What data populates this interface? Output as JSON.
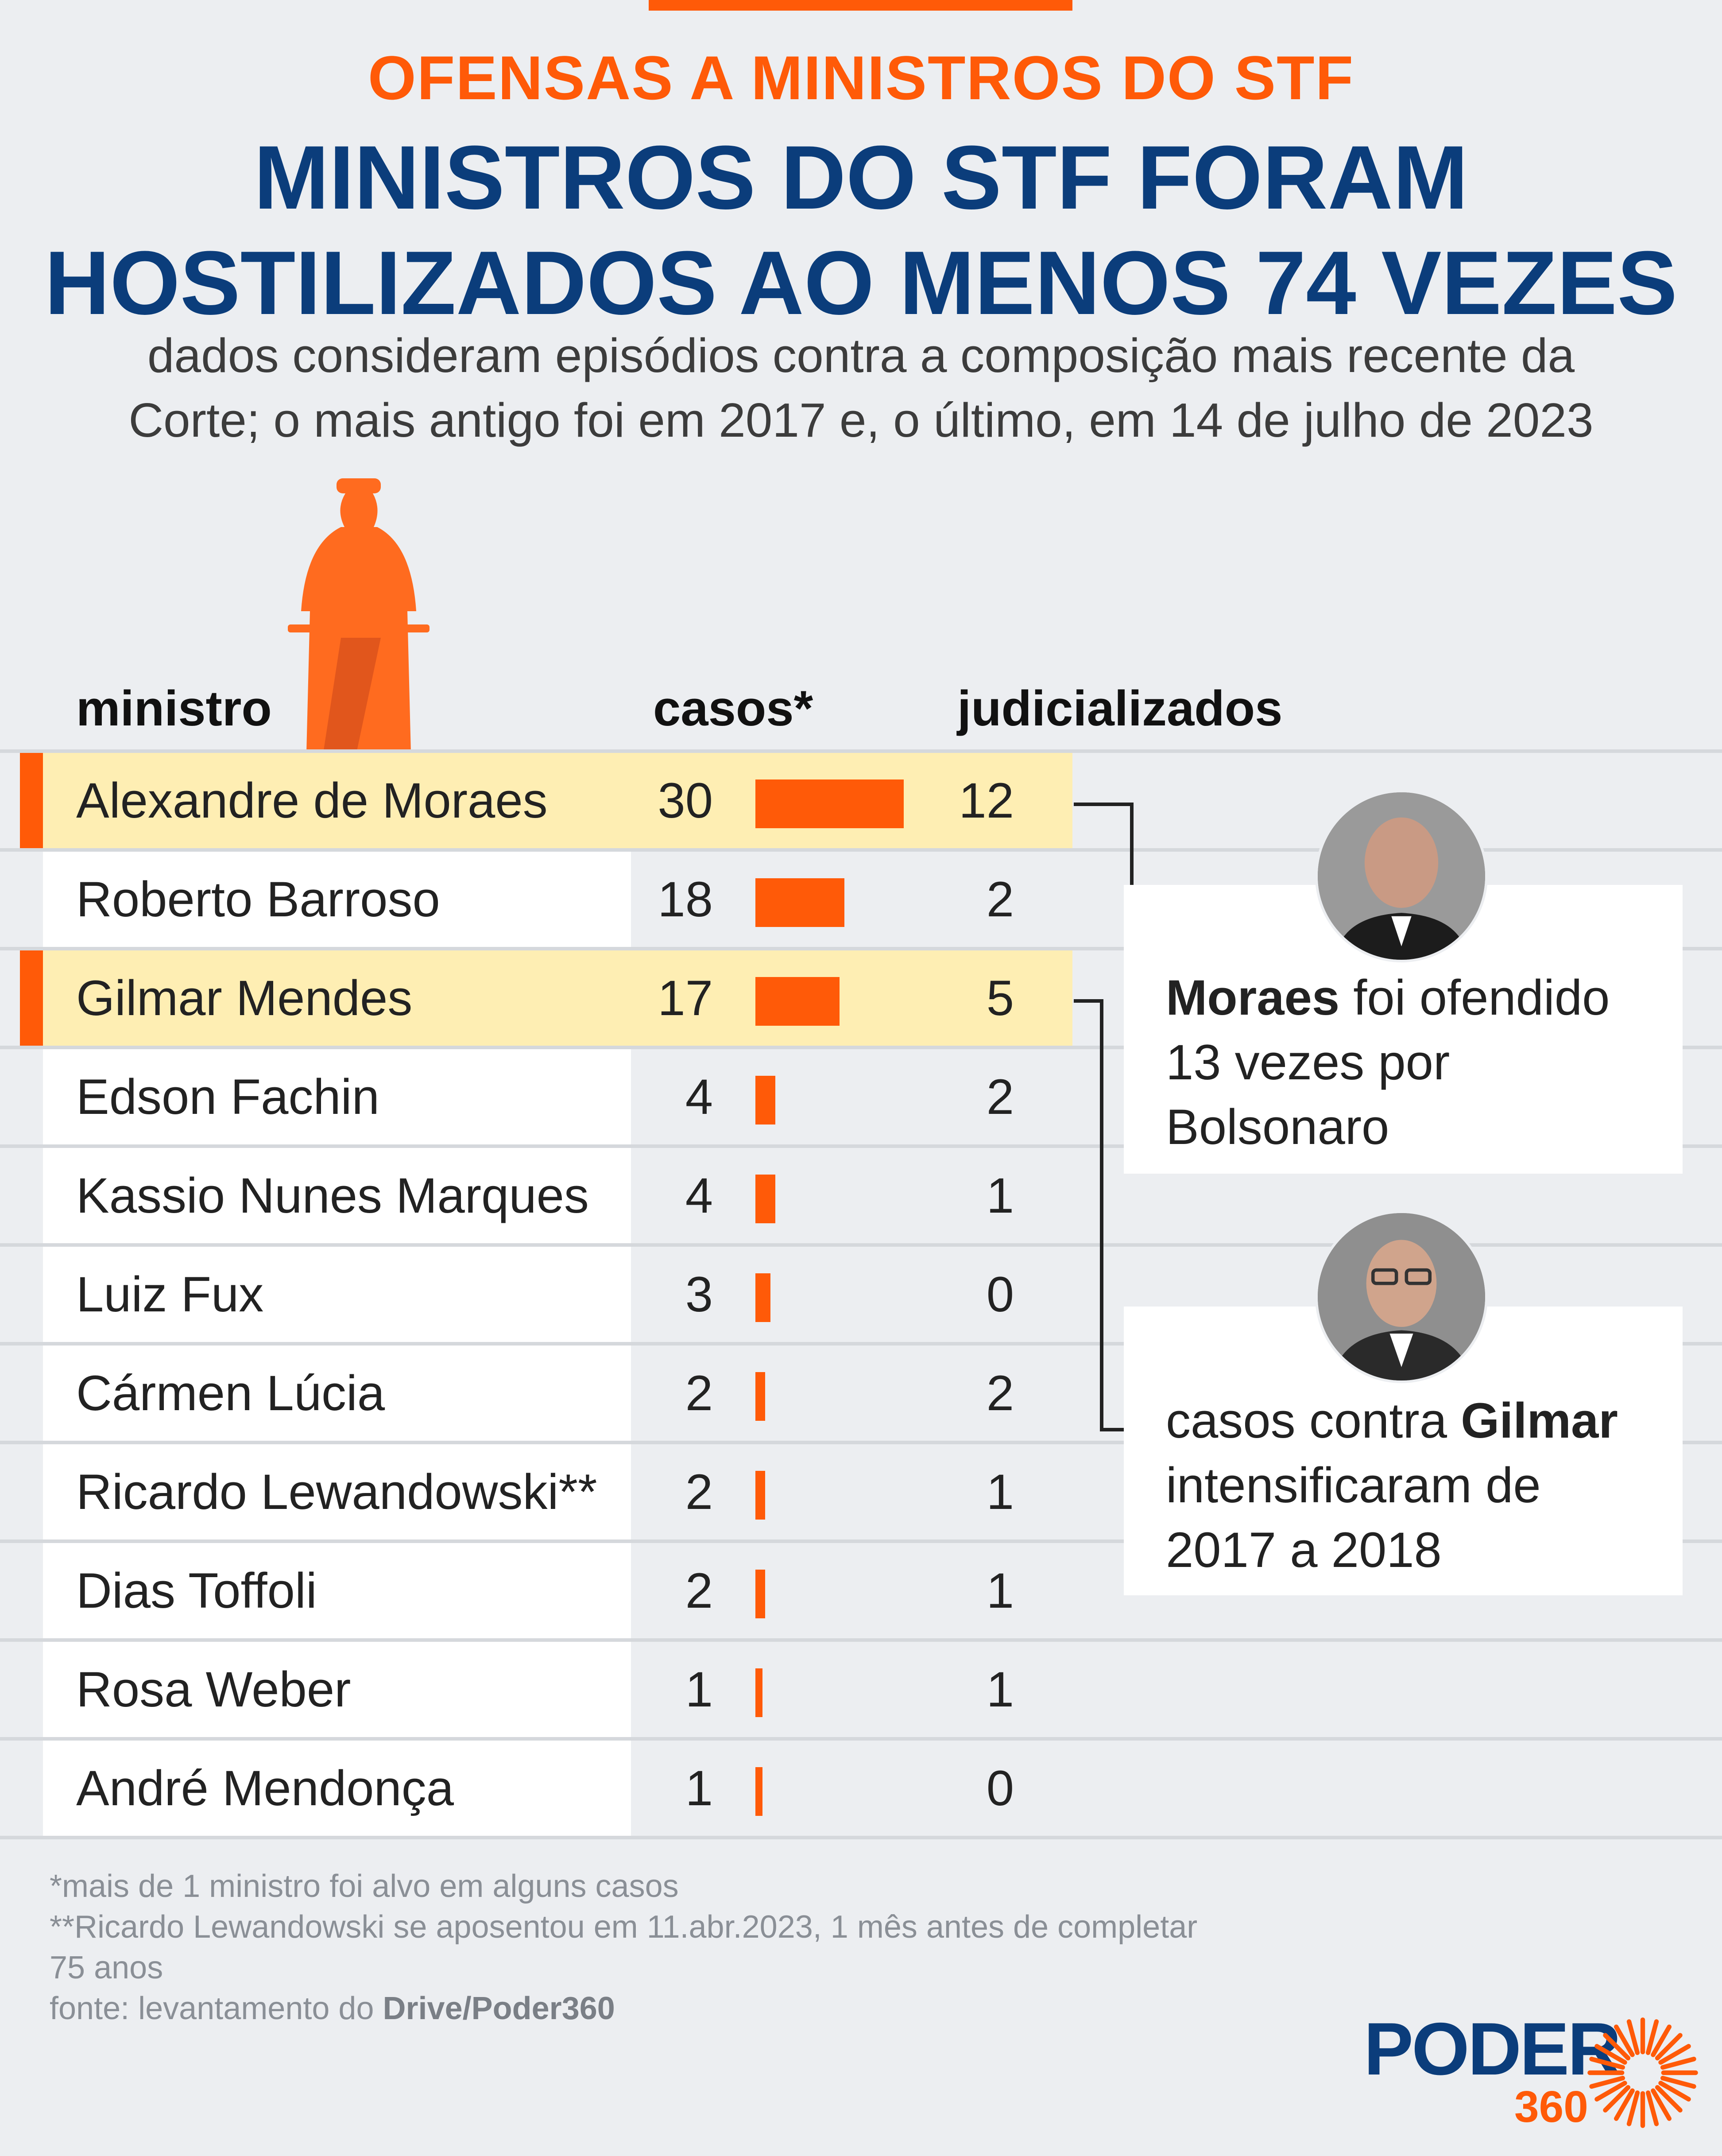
{
  "kicker": "OFENSAS A MINISTROS DO STF",
  "headline": [
    "MINISTROS DO STF FORAM",
    "HOSTILIZADOS AO MENOS 74 VEZES"
  ],
  "subtitle": [
    "dados consideram episódios contra a composição mais recente da",
    "Corte; o mais antigo foi em 2017 e, o último, em 14 de julho de 2023"
  ],
  "colors": {
    "accent": "#ff5a08",
    "headline": "#0b3d7b",
    "highlight_row": "#feeeb3",
    "statue": "#ff6b1f"
  },
  "statue_icon": "justice-statue-icon",
  "headers": {
    "ministro": "ministro",
    "casos": "casos*",
    "judicializados": "judicializados"
  },
  "chart_data": {
    "type": "table",
    "columns": [
      "ministro",
      "casos*",
      "judicializados"
    ],
    "rows": [
      {
        "name": "Alexandre de Moraes",
        "cases": 30,
        "judicialized": 12,
        "highlight": true
      },
      {
        "name": "Roberto Barroso",
        "cases": 18,
        "judicialized": 2,
        "highlight": false
      },
      {
        "name": "Gilmar Mendes",
        "cases": 17,
        "judicialized": 5,
        "highlight": true
      },
      {
        "name": "Edson Fachin",
        "cases": 4,
        "judicialized": 2,
        "highlight": false
      },
      {
        "name": "Kassio Nunes Marques",
        "cases": 4,
        "judicialized": 1,
        "highlight": false
      },
      {
        "name": "Luiz Fux",
        "cases": 3,
        "judicialized": 0,
        "highlight": false
      },
      {
        "name": "Cármen Lúcia",
        "cases": 2,
        "judicialized": 2,
        "highlight": false
      },
      {
        "name": "Ricardo Lewandowski**",
        "cases": 2,
        "judicialized": 1,
        "highlight": false
      },
      {
        "name": "Dias Toffoli",
        "cases": 2,
        "judicialized": 1,
        "highlight": false
      },
      {
        "name": "Rosa Weber",
        "cases": 1,
        "judicialized": 1,
        "highlight": false
      },
      {
        "name": "André Mendonça",
        "cases": 1,
        "judicialized": 0,
        "highlight": false
      }
    ],
    "bar_max": 30
  },
  "callouts": [
    {
      "bold": "Moraes",
      "rest_line1": " foi ofendido",
      "line2": "13 vezes por",
      "line3": "Bolsonaro",
      "photo": "moraes-photo"
    },
    {
      "pre": "casos contra ",
      "bold": "Gilmar",
      "line2": "intensificaram de",
      "line3": "2017 a 2018",
      "photo": "gilmar-photo"
    }
  ],
  "footnotes": {
    "n1": "*mais de 1 ministro foi alvo em alguns casos",
    "n2a": "**Ricardo Lewandowski se aposentou em 11.abr.2023, 1 mês antes de completar",
    "n2b": "75 anos",
    "source_prefix": "fonte: levantamento do ",
    "source_bold": "Drive/Poder360"
  },
  "logo": {
    "word": "PODER",
    "number": "360"
  }
}
